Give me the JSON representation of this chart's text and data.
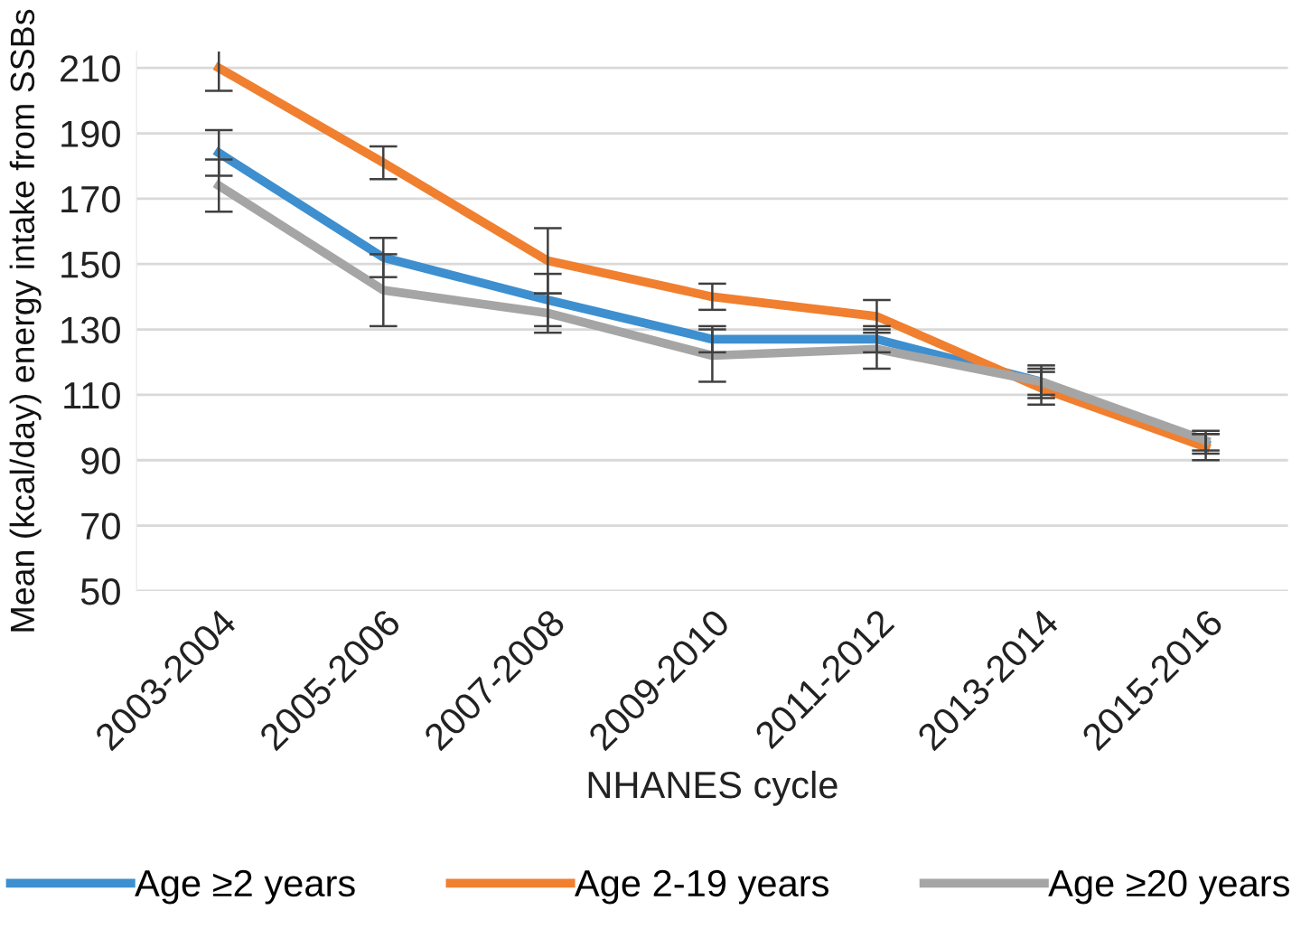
{
  "chart_data": {
    "type": "line",
    "xlabel": "NHANES cycle",
    "ylabel": "Mean (kcal/day) energy intake from SSBs",
    "categories": [
      "2003-2004",
      "2005-2006",
      "2007-2008",
      "2009-2010",
      "2011-2012",
      "2013-2014",
      "2015-2016"
    ],
    "series": [
      {
        "name": "Age ≥2 years",
        "color": "#3d8fcf",
        "values": [
          184,
          152,
          139,
          127,
          127,
          114,
          95
        ],
        "errors": [
          7,
          6,
          8,
          4,
          4,
          4,
          3
        ]
      },
      {
        "name": "Age 2-19 years",
        "color": "#f07f2f",
        "values": [
          210,
          181,
          151,
          140,
          134,
          112,
          94
        ],
        "errors": [
          7,
          5,
          10,
          4,
          5,
          5,
          4
        ]
      },
      {
        "name": "Age ≥20 years",
        "color": "#a5a5a5",
        "values": [
          174,
          142,
          135,
          122,
          124,
          114,
          96
        ],
        "errors": [
          8,
          11,
          6,
          8,
          6,
          5,
          3
        ]
      }
    ],
    "ylim": [
      50,
      215
    ],
    "yticks": [
      50,
      70,
      90,
      110,
      130,
      150,
      170,
      190,
      210
    ],
    "grid": "y",
    "legend": "bottom",
    "marker": "none",
    "line_style": "solid"
  }
}
